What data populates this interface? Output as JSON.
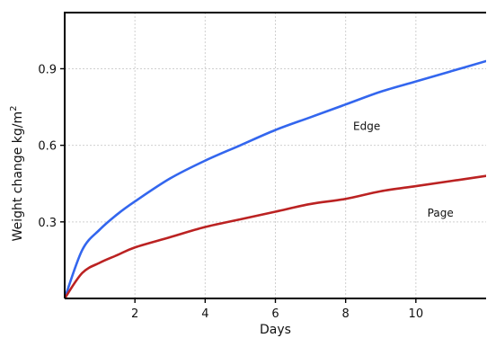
{
  "chart_data": {
    "type": "line",
    "title": "",
    "xlabel": "Days",
    "ylabel": "Weight change kg/m",
    "ylabel_superscript": "2",
    "xlim": [
      0,
      12
    ],
    "ylim": [
      0,
      1.12
    ],
    "x_ticks": [
      2,
      4,
      6,
      8,
      10
    ],
    "x_tick_labels": [
      "2",
      "4",
      "6",
      "8",
      "10"
    ],
    "y_ticks": [
      0.3,
      0.6,
      0.9
    ],
    "y_tick_labels": [
      "0.3",
      "0.6",
      "0.9"
    ],
    "grid": true,
    "legend": "none",
    "series": [
      {
        "name": "Edge",
        "color": "#3366ee",
        "x": [
          0,
          0.5,
          1,
          1.5,
          2,
          3,
          4,
          5,
          6,
          7,
          8,
          9,
          10,
          11,
          12
        ],
        "y": [
          0,
          0.19,
          0.27,
          0.33,
          0.38,
          0.47,
          0.54,
          0.6,
          0.66,
          0.71,
          0.76,
          0.81,
          0.85,
          0.89,
          0.93
        ]
      },
      {
        "name": "Page",
        "color": "#bb2222",
        "x": [
          0,
          0.5,
          1,
          1.5,
          2,
          3,
          4,
          5,
          6,
          7,
          8,
          9,
          10,
          11,
          12
        ],
        "y": [
          0,
          0.1,
          0.14,
          0.17,
          0.2,
          0.24,
          0.28,
          0.31,
          0.34,
          0.37,
          0.39,
          0.42,
          0.44,
          0.46,
          0.48
        ]
      }
    ],
    "annotations": [
      {
        "text": "Edge",
        "series": "Edge",
        "x": 8.6,
        "y": 0.66
      },
      {
        "text": "Page",
        "series": "Page",
        "x": 10.7,
        "y": 0.32
      }
    ]
  }
}
